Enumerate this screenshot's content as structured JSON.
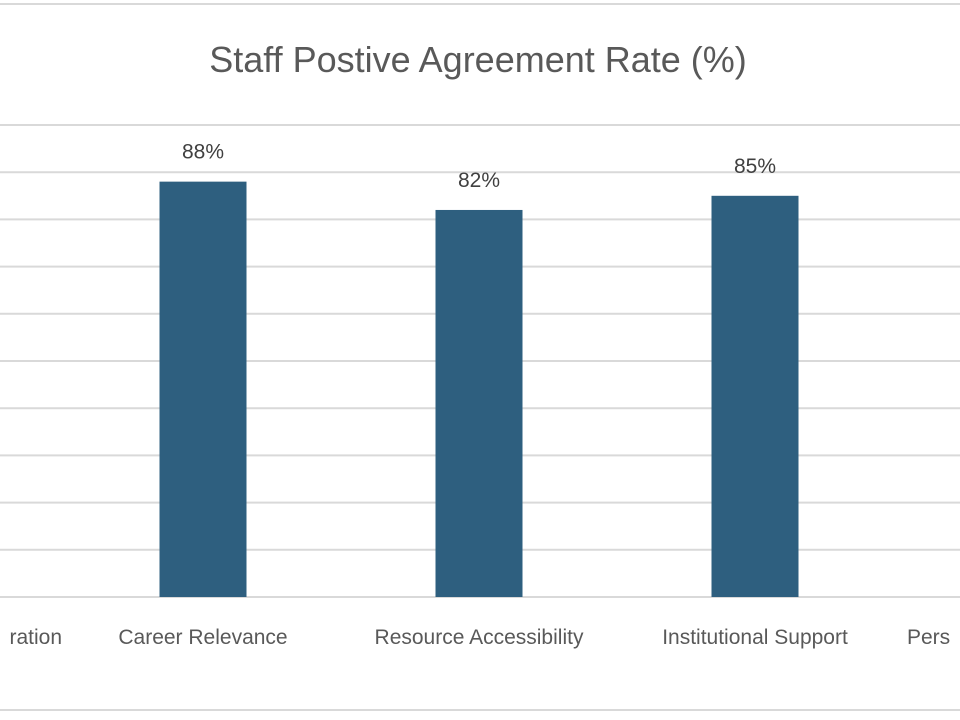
{
  "chart_data": {
    "type": "bar",
    "title": "Staff Postive Agreement Rate (%)",
    "categories": [
      "ration",
      "Career Relevance",
      "Resource Accessibility",
      "Institutional Support",
      "Pers"
    ],
    "values": [
      null,
      88,
      82,
      85,
      null
    ],
    "data_labels": [
      "",
      "88%",
      "82%",
      "85%",
      ""
    ],
    "ylim": [
      0,
      100
    ],
    "grid_step": 10,
    "grid": true,
    "xlabel": "",
    "ylabel": "",
    "bar_color": "#2e5f7f"
  }
}
